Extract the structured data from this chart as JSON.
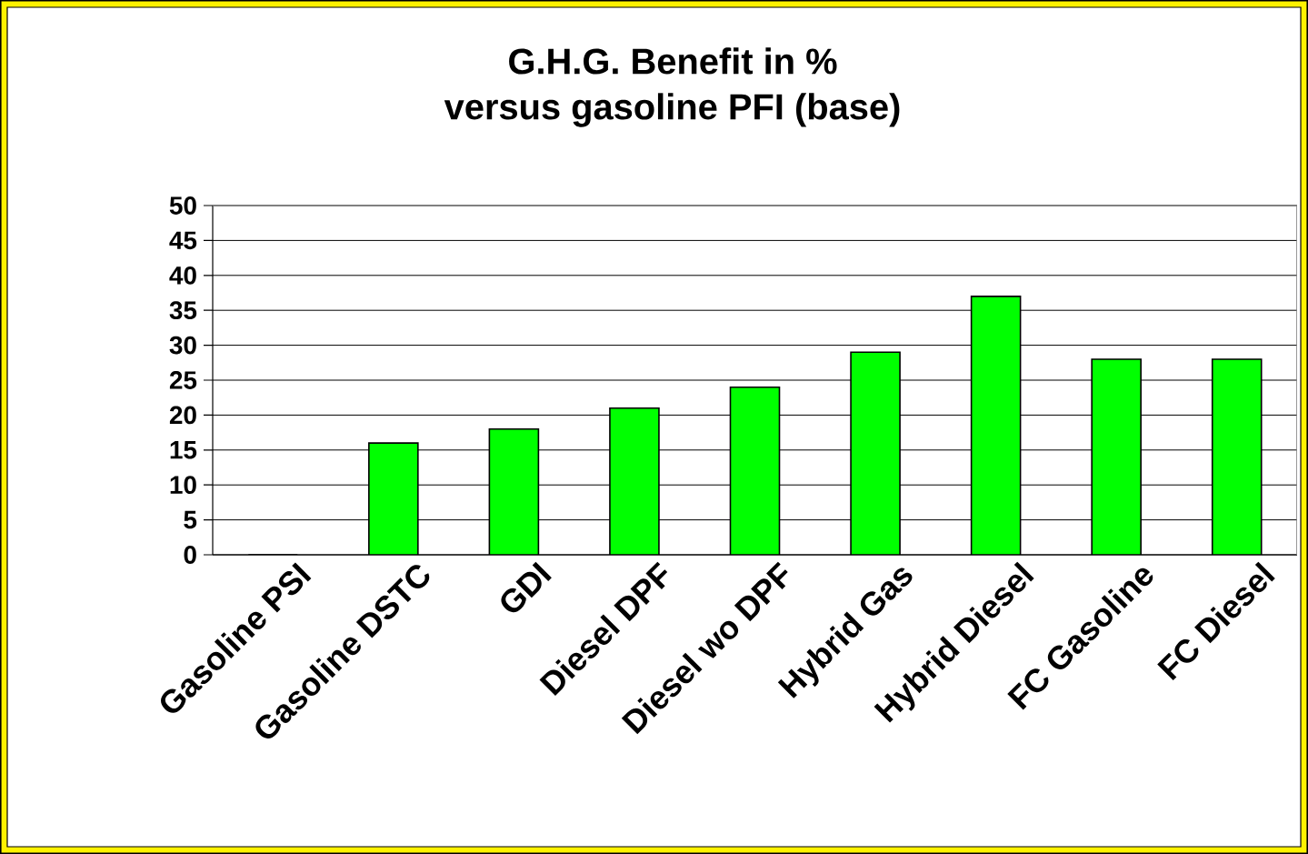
{
  "chart_data": {
    "type": "bar",
    "title": "G.H.G. Benefit   in %",
    "subtitle": "versus  gasoline PFI  (base)",
    "categories": [
      "Gasoline PSI",
      "Gasoline DSTC",
      "GDI",
      "Diesel DPF",
      "Diesel wo DPF",
      "Hybrid Gas",
      "Hybrid Diesel",
      "FC Gasoline",
      "FC Diesel"
    ],
    "values": [
      0,
      16,
      18,
      21,
      24,
      29,
      37,
      28,
      28
    ],
    "color": "#00ff00",
    "ylim": [
      0,
      50
    ],
    "yticks": [
      0,
      5,
      10,
      15,
      20,
      25,
      30,
      35,
      40,
      45,
      50
    ],
    "grid": "y"
  }
}
